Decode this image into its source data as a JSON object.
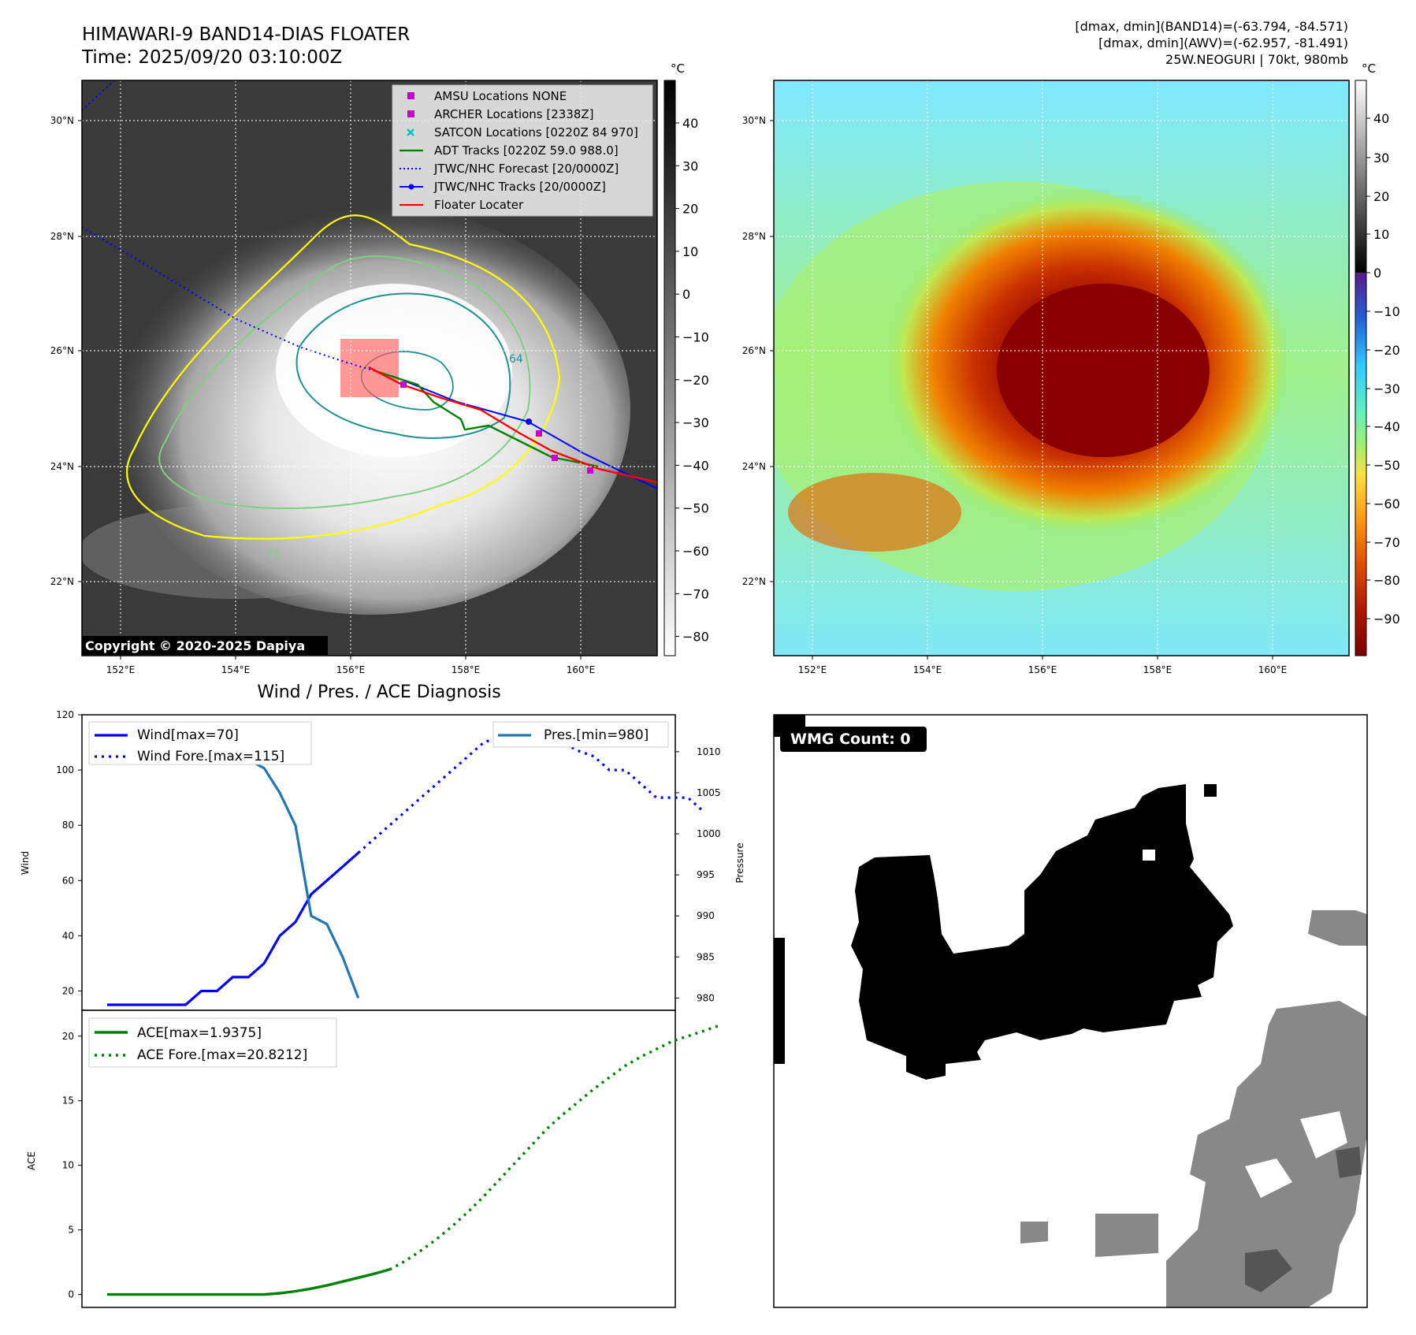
{
  "header": {
    "title_line1": "HIMAWARI-9 BAND14-DIAS FLOATER",
    "title_line2": "Time: 2025/09/20 03:10:00Z",
    "info_line1": "[dmax, dmin](BAND14)=(-63.794, -84.571)",
    "info_line2": "[dmax, dmin](AWV)=(-62.957, -81.491)",
    "info_line3": "25W.NEOGURI | 70kt, 980mb"
  },
  "map": {
    "lon_ticks": [
      "152°E",
      "154°E",
      "156°E",
      "158°E",
      "160°E"
    ],
    "lat_ticks": [
      "30°N",
      "28°N",
      "26°N",
      "24°N",
      "22°N"
    ],
    "copyright": "Copyright © 2020-2025 Dapiya",
    "contour_labels": [
      "64",
      "31"
    ],
    "colors": {
      "jtwc_track": "#0000ff",
      "adt_track": "#008000",
      "floater": "#ff0000",
      "archer": "#cc00cc",
      "satcon": "#00bfbf",
      "contour_outer": "#ffff00",
      "contour_mid": "#7fd080",
      "contour_inner": "#1f8f8f"
    },
    "legend": [
      {
        "icon": "square-marker-icon",
        "color": "#cc00cc",
        "label": "AMSU Locations NONE"
      },
      {
        "icon": "square-marker-icon",
        "color": "#cc00cc",
        "label": "ARCHER Locations [2338Z]"
      },
      {
        "icon": "x-marker-icon",
        "color": "#00bfbf",
        "label": "SATCON Locations [0220Z 84 970]"
      },
      {
        "icon": "solid-line-icon",
        "color": "#008000",
        "label": "ADT Tracks [0220Z 59.0 988.0]"
      },
      {
        "icon": "dotted-line-icon",
        "color": "#0000ff",
        "label": "JTWC/NHC Forecast [20/0000Z]"
      },
      {
        "icon": "line-dot-icon",
        "color": "#0000ff",
        "label": "JTWC/NHC Tracks [20/0000Z]"
      },
      {
        "icon": "solid-line-icon",
        "color": "#ff0000",
        "label": "Floater Locater"
      }
    ]
  },
  "colorbars": {
    "unit": "°C",
    "left_ticks": [
      "40",
      "30",
      "20",
      "10",
      "0",
      "−10",
      "−20",
      "−30",
      "−40",
      "−50",
      "−60",
      "−70",
      "−80"
    ],
    "right_ticks": [
      "40",
      "30",
      "20",
      "10",
      "0",
      "−10",
      "−20",
      "−30",
      "−40",
      "−50",
      "−60",
      "−70",
      "−80",
      "−90"
    ]
  },
  "wmg": {
    "label": "WMG Count: 0"
  },
  "chart_data": [
    {
      "type": "line",
      "title": "Wind / Pres. / ACE Diagnosis",
      "ylabel": "Wind",
      "y2label": "Pressure",
      "ylim": [
        13,
        120
      ],
      "y2lim": [
        978.5,
        1014.5
      ],
      "yticks": [
        20,
        40,
        60,
        80,
        100,
        120
      ],
      "y2ticks": [
        980,
        985,
        990,
        995,
        1000,
        1005,
        1010
      ],
      "x_count": 37,
      "series": [
        {
          "name": "Wind[max=70]",
          "axis": "left",
          "style": "solid",
          "color": "#0000ff",
          "values": [
            15,
            15,
            15,
            15,
            15,
            15,
            20,
            20,
            25,
            25,
            30,
            40,
            45,
            55,
            60,
            65,
            70
          ]
        },
        {
          "name": "Wind Fore.[max=115]",
          "axis": "left",
          "style": "dotted",
          "color": "#0000ff",
          "start_index": 16,
          "values": [
            70,
            75,
            80,
            85,
            90,
            95,
            100,
            105,
            110,
            112,
            115,
            112,
            110,
            110,
            107,
            105,
            100,
            100,
            95,
            90,
            90,
            90,
            85
          ]
        },
        {
          "name": "Pres.[min=980]",
          "axis": "right",
          "style": "solid",
          "color": "#1f77b4",
          "values": [
            1010,
            1010,
            1012,
            1012,
            1012,
            1010,
            1009,
            1009,
            1009,
            1008,
            1005,
            1001,
            990,
            989,
            985,
            980
          ],
          "x_offset": 1
        }
      ],
      "legend": [
        "Wind[max=70]",
        "Wind Fore.[max=115]",
        "Pres.[min=980]"
      ]
    },
    {
      "type": "line",
      "ylabel": "ACE",
      "ylim": [
        -1,
        22
      ],
      "yticks": [
        0,
        5,
        10,
        15,
        20
      ],
      "x_count": 37,
      "series": [
        {
          "name": "ACE[max=1.9375]",
          "style": "solid",
          "color": "#008000",
          "values": [
            0,
            0,
            0,
            0,
            0,
            0,
            0,
            0,
            0,
            0,
            0,
            0.1,
            0.25,
            0.45,
            0.7,
            1.0,
            1.3,
            1.6,
            1.9375
          ]
        },
        {
          "name": "ACE Fore.[max=20.8212]",
          "style": "dotted",
          "color": "#008000",
          "start_index": 18,
          "values": [
            1.9375,
            2.6,
            3.4,
            4.3,
            5.3,
            6.4,
            7.6,
            8.9,
            10.2,
            11.5,
            12.8,
            13.9,
            14.9,
            15.9,
            16.8,
            17.7,
            18.4,
            19.0,
            19.6,
            20.0,
            20.4,
            20.8212
          ]
        }
      ],
      "legend": [
        "ACE[max=1.9375]",
        "ACE Fore.[max=20.8212]"
      ]
    }
  ]
}
